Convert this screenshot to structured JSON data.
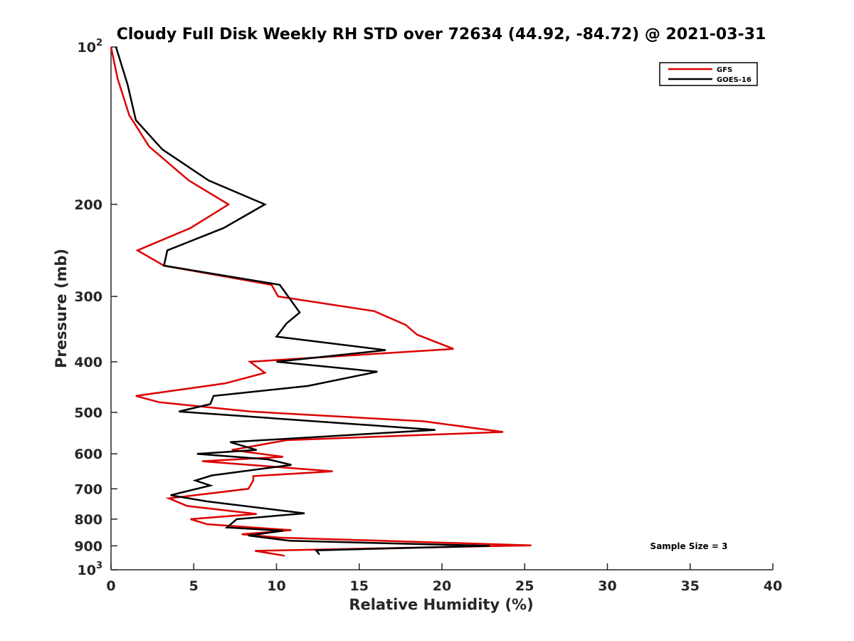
{
  "chart_data": {
    "type": "line",
    "title": "Cloudy Full Disk Weekly RH STD over 72634 (44.92, -84.72) @ 2021-03-31",
    "xlabel": "Relative Humidity (%)",
    "ylabel": "Pressure (mb)",
    "xlim": [
      0,
      40
    ],
    "ylim": [
      100,
      1000
    ],
    "y_scale": "log",
    "y_reversed": true,
    "grid": false,
    "legend_position": "top-right",
    "x_ticks": [
      0,
      5,
      10,
      15,
      20,
      25,
      30,
      35,
      40
    ],
    "y_ticks": [
      {
        "value": 100,
        "base": "10",
        "exp": "2"
      },
      {
        "value": 200,
        "label": "200"
      },
      {
        "value": 300,
        "label": "300"
      },
      {
        "value": 400,
        "label": "400"
      },
      {
        "value": 500,
        "label": "500"
      },
      {
        "value": 600,
        "label": "600"
      },
      {
        "value": 700,
        "label": "700"
      },
      {
        "value": 800,
        "label": "800"
      },
      {
        "value": 900,
        "label": "900"
      },
      {
        "value": 1000,
        "base": "10",
        "exp": "3"
      }
    ],
    "series": [
      {
        "name": "GFS",
        "color": "#dd0000",
        "points": [
          [
            0.0,
            100
          ],
          [
            0.4,
            115
          ],
          [
            1.1,
            135
          ],
          [
            2.3,
            155
          ],
          [
            4.7,
            180
          ],
          [
            7.1,
            200
          ],
          [
            4.8,
            222
          ],
          [
            1.6,
            245
          ],
          [
            3.2,
            262
          ],
          [
            9.7,
            285
          ],
          [
            10.1,
            300
          ],
          [
            15.9,
            320
          ],
          [
            17.8,
            340
          ],
          [
            18.5,
            355
          ],
          [
            20.7,
            378
          ],
          [
            8.4,
            400
          ],
          [
            9.3,
            420
          ],
          [
            6.9,
            440
          ],
          [
            1.5,
            465
          ],
          [
            2.9,
            478
          ],
          [
            8.4,
            498
          ],
          [
            18.9,
            520
          ],
          [
            23.7,
            545
          ],
          [
            10.6,
            565
          ],
          [
            7.3,
            590
          ],
          [
            10.4,
            608
          ],
          [
            5.5,
            620
          ],
          [
            13.4,
            648
          ],
          [
            8.6,
            662
          ],
          [
            8.6,
            675
          ],
          [
            8.3,
            700
          ],
          [
            3.5,
            730
          ],
          [
            4.6,
            755
          ],
          [
            8.8,
            782
          ],
          [
            4.8,
            800
          ],
          [
            5.8,
            818
          ],
          [
            10.9,
            840
          ],
          [
            7.9,
            855
          ],
          [
            10.2,
            868
          ],
          [
            25.4,
            898
          ],
          [
            8.7,
            920
          ],
          [
            10.5,
            940
          ]
        ]
      },
      {
        "name": "GOES-16",
        "color": "#000000",
        "points": [
          [
            0.3,
            100
          ],
          [
            1.0,
            118
          ],
          [
            1.5,
            138
          ],
          [
            3.1,
            157
          ],
          [
            5.9,
            180
          ],
          [
            9.3,
            200
          ],
          [
            6.8,
            222
          ],
          [
            3.4,
            245
          ],
          [
            3.2,
            262
          ],
          [
            10.2,
            285
          ],
          [
            11.4,
            322
          ],
          [
            10.6,
            338
          ],
          [
            10.0,
            358
          ],
          [
            16.6,
            380
          ],
          [
            10.0,
            400
          ],
          [
            16.1,
            418
          ],
          [
            11.9,
            445
          ],
          [
            6.2,
            465
          ],
          [
            6.0,
            482
          ],
          [
            4.1,
            498
          ],
          [
            19.6,
            540
          ],
          [
            7.2,
            570
          ],
          [
            8.8,
            590
          ],
          [
            5.2,
            600
          ],
          [
            9.5,
            615
          ],
          [
            10.9,
            630
          ],
          [
            6.1,
            660
          ],
          [
            5.1,
            675
          ],
          [
            6.0,
            690
          ],
          [
            3.6,
            720
          ],
          [
            5.8,
            740
          ],
          [
            11.7,
            780
          ],
          [
            7.6,
            800
          ],
          [
            7.0,
            830
          ],
          [
            10.4,
            842
          ],
          [
            8.3,
            860
          ],
          [
            10.8,
            880
          ],
          [
            22.9,
            900
          ],
          [
            12.4,
            918
          ],
          [
            12.6,
            935
          ]
        ]
      }
    ],
    "annotation": "Sample Size = 3"
  }
}
